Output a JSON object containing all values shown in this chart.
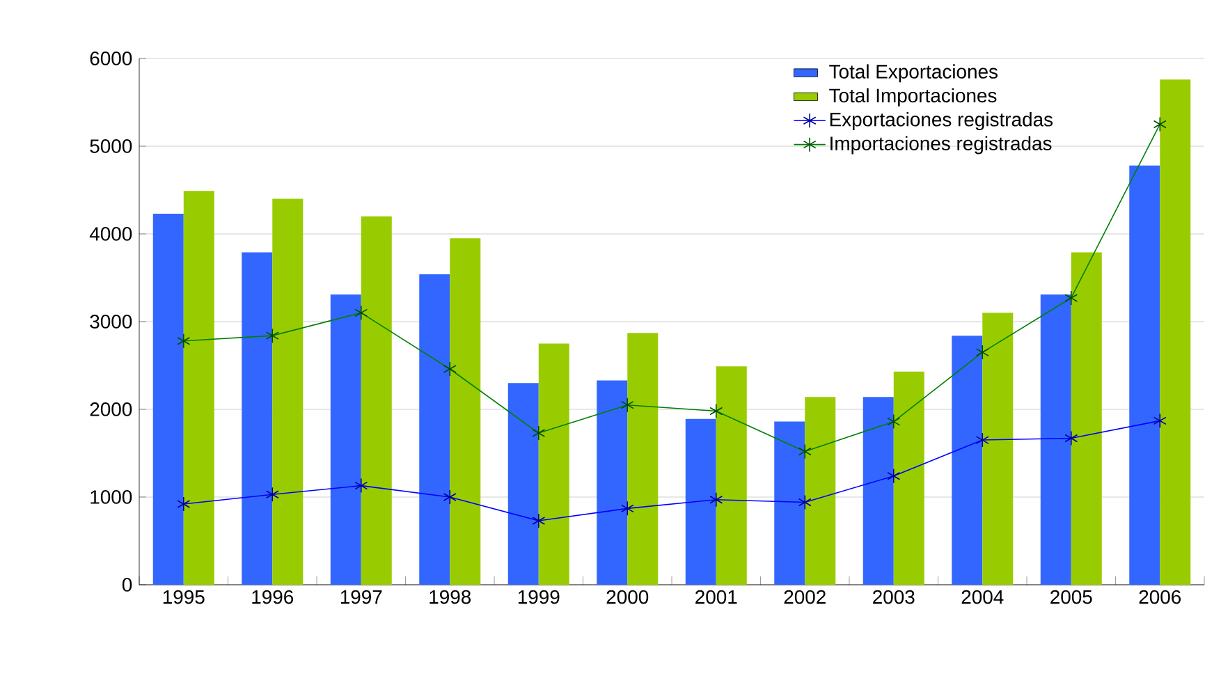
{
  "chart_data": {
    "type": "bar",
    "categories": [
      "1995",
      "1996",
      "1997",
      "1998",
      "1999",
      "2000",
      "2001",
      "2002",
      "2003",
      "2004",
      "2005",
      "2006"
    ],
    "series": [
      {
        "name": "Total Exportaciones",
        "color": "#3366ff",
        "values": [
          4230,
          3790,
          3310,
          3540,
          2300,
          2330,
          1890,
          1860,
          2140,
          2840,
          3310,
          4780
        ]
      },
      {
        "name": "Total Importaciones",
        "color": "#99cc00",
        "values": [
          4490,
          4400,
          4200,
          3950,
          2750,
          2870,
          2490,
          2140,
          2430,
          3100,
          3790,
          5760
        ]
      },
      {
        "name": "Exportaciones registradas",
        "type": "line",
        "color": "#0000ff",
        "marker": "cross",
        "values": [
          920,
          1030,
          1130,
          1000,
          730,
          870,
          970,
          940,
          1240,
          1650,
          1670,
          1870
        ]
      },
      {
        "name": "Importaciones registradas",
        "type": "line",
        "color": "#008000",
        "marker": "cross",
        "values": [
          2780,
          2840,
          3100,
          2460,
          1730,
          2050,
          1980,
          1520,
          1860,
          2650,
          3270,
          5250
        ]
      }
    ],
    "ylim": [
      0,
      6000
    ],
    "yticks": [
      0,
      1000,
      2000,
      3000,
      4000,
      5000,
      6000
    ],
    "grid": "y",
    "legend": "top right"
  }
}
